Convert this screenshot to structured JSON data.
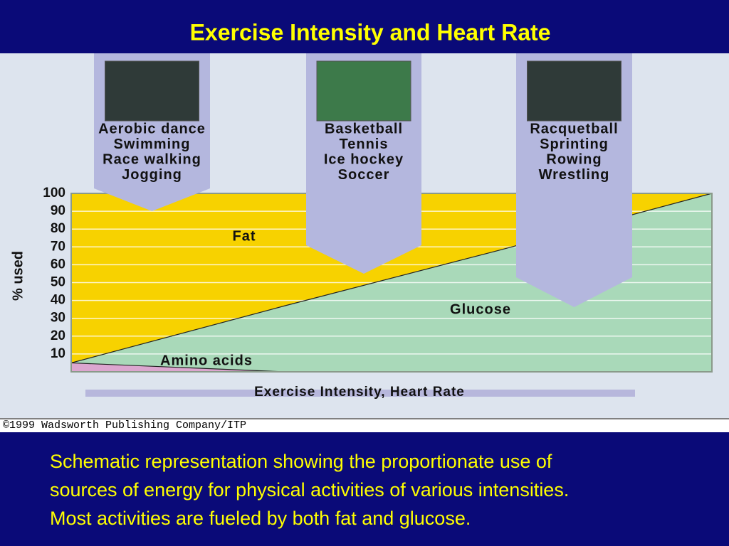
{
  "header": {
    "title": "Exercise Intensity and Heart Rate"
  },
  "activities": [
    {
      "items": [
        "Aerobic dance",
        "Swimming",
        "Race walking",
        "Jogging"
      ]
    },
    {
      "items": [
        "Basketball",
        "Tennis",
        "Ice hockey",
        "Soccer"
      ]
    },
    {
      "items": [
        "Racquetball",
        "Sprinting",
        "Rowing",
        "Wrestling"
      ]
    }
  ],
  "chart_data": {
    "type": "area",
    "stacked": true,
    "y_label": "% used",
    "x_label": "Exercise Intensity, Heart Rate",
    "categories": [
      null,
      null,
      null,
      null
    ],
    "series": [
      {
        "name": "Amino acids",
        "color": "#dca6cf",
        "values": [
          5,
          0,
          0,
          0
        ]
      },
      {
        "name": "Glucose",
        "color": "#a9d9b9",
        "values": [
          0,
          37,
          68,
          100
        ]
      },
      {
        "name": "Fat",
        "color": "#f7d200",
        "values": [
          95,
          63,
          32,
          0
        ]
      }
    ],
    "ylim": [
      0,
      100
    ],
    "yticks": [
      10,
      20,
      30,
      40,
      50,
      60,
      70,
      80,
      90,
      100
    ],
    "grid": true
  },
  "copyright": "©1999 Wadsworth Publishing Company/ITP",
  "caption": [
    "Schematic representation showing the proportionate use of",
    "sources of energy for physical activities of various intensities.",
    "Most activities are fueled by both fat and glucose."
  ]
}
